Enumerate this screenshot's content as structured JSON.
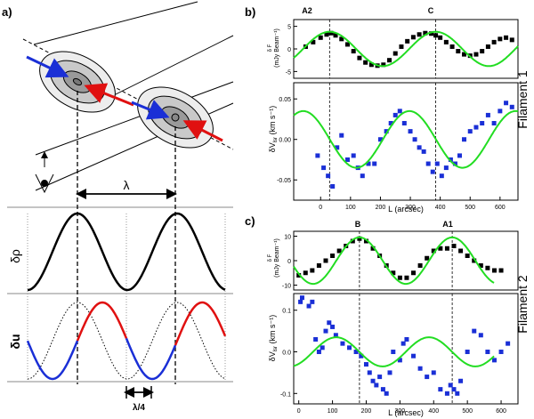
{
  "figure": {
    "panel_a": {
      "label": "a)",
      "lambda_label": "λ",
      "quarter_lambda_label": "λ/4",
      "density_label": "δρ",
      "velocity_label": "δu",
      "arrow_colors": {
        "blue": "#1a2fd6",
        "red": "#e01010",
        "green": "#22dd22",
        "black": "#000000"
      }
    },
    "panel_b": {
      "label": "b)",
      "side_label": "Filament 1",
      "markers": [
        "A2",
        "C"
      ],
      "top_ylabel_lines": [
        "δ F",
        "(mJy Beam⁻¹)"
      ],
      "bottom_ylabel": "δV",
      "bottom_ylabel_sub": "lsr",
      "bottom_ylabel_unit": "(km s⁻¹)",
      "xlabel": "L (arcsec)"
    },
    "panel_c": {
      "label": "c)",
      "side_label": "Filament 2",
      "markers": [
        "B",
        "A1"
      ],
      "top_ylabel_lines": [
        "δ F",
        "(mJy Beam⁻¹)"
      ],
      "bottom_ylabel": "δV",
      "bottom_ylabel_sub": "lsr",
      "bottom_ylabel_unit": "(km s⁻¹)",
      "xlabel": "L (arcsec)"
    }
  },
  "chart_data": [
    {
      "id": "b-flux",
      "type": "scatter",
      "title": "",
      "xlabel": "",
      "ylabel": "δF (mJy Beam⁻¹)",
      "xlim": [
        -90,
        660
      ],
      "ylim": [
        -6.5,
        6.5
      ],
      "yticks": [
        -5,
        0,
        5
      ],
      "yticklabels": [
        "-5",
        "0",
        "5"
      ],
      "vlines": [
        30,
        385
      ],
      "series": [
        {
          "name": "data",
          "marker": "square",
          "color": "#000000",
          "x": [
            -50,
            -25,
            0,
            20,
            35,
            50,
            70,
            90,
            110,
            130,
            150,
            170,
            190,
            210,
            230,
            250,
            270,
            290,
            310,
            330,
            350,
            370,
            385,
            400,
            420,
            440,
            460,
            480,
            500,
            520,
            540,
            560,
            580,
            600,
            620,
            640
          ],
          "y": [
            0.5,
            1.5,
            2.5,
            3.2,
            3.5,
            3.0,
            2.2,
            1.0,
            -0.5,
            -2.0,
            -3.0,
            -3.5,
            -3.7,
            -3.5,
            -2.5,
            -1.0,
            0.5,
            1.7,
            2.6,
            3.2,
            3.5,
            3.4,
            3.0,
            2.5,
            1.5,
            0.5,
            -0.5,
            -1.2,
            -1.5,
            -1.2,
            -0.5,
            0.5,
            1.5,
            2.2,
            2.5,
            2.0
          ]
        },
        {
          "name": "model",
          "type": "line",
          "color": "#22dd22",
          "func": "sine",
          "amplitude": 3.8,
          "period": 355,
          "phase_x": 30,
          "range": [
            -90,
            660
          ]
        }
      ]
    },
    {
      "id": "b-vel",
      "type": "scatter",
      "title": "",
      "xlabel": "L (arcsec)",
      "ylabel": "δVlsr (km s⁻¹)",
      "xlim": [
        -90,
        660
      ],
      "ylim": [
        -0.075,
        0.07
      ],
      "yticks": [
        -0.05,
        0,
        0.05
      ],
      "yticklabels": [
        "-0.05",
        "0.00",
        "0.05"
      ],
      "xticks": [
        0,
        100,
        200,
        300,
        400,
        500,
        600
      ],
      "vlines": [
        30,
        385
      ],
      "series": [
        {
          "name": "data",
          "marker": "square",
          "color": "#1a2fd6",
          "x": [
            -10,
            10,
            25,
            40,
            55,
            70,
            90,
            110,
            125,
            140,
            160,
            180,
            200,
            220,
            235,
            250,
            265,
            280,
            300,
            315,
            330,
            345,
            360,
            375,
            390,
            405,
            420,
            435,
            450,
            465,
            480,
            500,
            520,
            540,
            560,
            580,
            600,
            620,
            640
          ],
          "y": [
            -0.02,
            -0.035,
            -0.045,
            -0.058,
            -0.01,
            0.005,
            -0.025,
            -0.02,
            -0.035,
            -0.045,
            -0.03,
            -0.03,
            0.0,
            0.01,
            0.02,
            0.03,
            0.035,
            0.02,
            0.01,
            0.0,
            -0.01,
            -0.015,
            -0.03,
            -0.04,
            -0.03,
            -0.045,
            -0.035,
            -0.025,
            -0.03,
            -0.02,
            0.0,
            0.01,
            0.015,
            0.02,
            0.03,
            0.02,
            0.035,
            0.045,
            0.04
          ]
        },
        {
          "name": "model",
          "type": "line",
          "color": "#22dd22",
          "func": "sine",
          "amplitude": 0.035,
          "period": 355,
          "phase_x": -58,
          "range": [
            -90,
            660
          ]
        }
      ]
    },
    {
      "id": "c-flux",
      "type": "scatter",
      "title": "",
      "xlabel": "",
      "ylabel": "δF (mJy Beam⁻¹)",
      "xlim": [
        -15,
        650
      ],
      "ylim": [
        -12,
        12
      ],
      "yticks": [
        -10,
        0,
        10
      ],
      "yticklabels": [
        "-10",
        "0",
        "10"
      ],
      "vlines": [
        180,
        455
      ],
      "series": [
        {
          "name": "data",
          "marker": "square",
          "color": "#000000",
          "x": [
            0,
            20,
            40,
            60,
            80,
            100,
            120,
            140,
            160,
            180,
            200,
            220,
            240,
            260,
            280,
            300,
            320,
            340,
            360,
            380,
            400,
            420,
            440,
            460,
            480,
            500,
            520,
            540,
            560,
            580,
            600
          ],
          "y": [
            -6,
            -5,
            -4,
            -2,
            0,
            2,
            4,
            6,
            8,
            9,
            8,
            5,
            2,
            -2,
            -5,
            -7,
            -7,
            -5,
            -2,
            1,
            4,
            5,
            5,
            6,
            4,
            2,
            0,
            -2,
            -3,
            -4,
            -4
          ]
        },
        {
          "name": "model",
          "type": "line",
          "color": "#22dd22",
          "func": "sine",
          "amplitude": 9.5,
          "period": 275,
          "phase_x": 180,
          "range": [
            -15,
            580
          ]
        }
      ]
    },
    {
      "id": "c-vel",
      "type": "scatter",
      "title": "",
      "xlabel": "L (arcsec)",
      "ylabel": "δVlsr (km s⁻¹)",
      "xlim": [
        -15,
        650
      ],
      "ylim": [
        -0.125,
        0.14
      ],
      "yticks": [
        -0.1,
        0,
        0.1
      ],
      "yticklabels": [
        "-0.1",
        "0.0",
        "0.1"
      ],
      "xticks": [
        0,
        100,
        200,
        300,
        400,
        500,
        600
      ],
      "vlines": [
        180,
        455
      ],
      "series": [
        {
          "name": "data",
          "marker": "square",
          "color": "#1a2fd6",
          "x": [
            5,
            10,
            30,
            40,
            50,
            60,
            70,
            80,
            90,
            100,
            110,
            130,
            150,
            170,
            185,
            200,
            210,
            220,
            230,
            240,
            250,
            260,
            270,
            280,
            300,
            310,
            320,
            340,
            360,
            380,
            400,
            420,
            440,
            450,
            460,
            470,
            480,
            500,
            520,
            540,
            560,
            580,
            600,
            620
          ],
          "y": [
            0.12,
            0.13,
            0.11,
            0.12,
            0.03,
            0.0,
            0.01,
            0.05,
            0.07,
            0.06,
            0.04,
            0.02,
            0.01,
            0.0,
            -0.01,
            -0.03,
            -0.05,
            -0.07,
            -0.08,
            -0.06,
            -0.09,
            -0.1,
            -0.05,
            0.0,
            -0.02,
            0.02,
            0.03,
            -0.01,
            -0.04,
            -0.06,
            -0.05,
            -0.09,
            -0.1,
            -0.08,
            -0.09,
            -0.1,
            -0.07,
            0.0,
            0.05,
            0.04,
            0.0,
            -0.02,
            0.0,
            0.02
          ]
        },
        {
          "name": "model",
          "type": "line",
          "color": "#22dd22",
          "func": "sine",
          "amplitude": 0.035,
          "period": 275,
          "phase_x": 111,
          "range": [
            -15,
            580
          ]
        }
      ]
    }
  ]
}
